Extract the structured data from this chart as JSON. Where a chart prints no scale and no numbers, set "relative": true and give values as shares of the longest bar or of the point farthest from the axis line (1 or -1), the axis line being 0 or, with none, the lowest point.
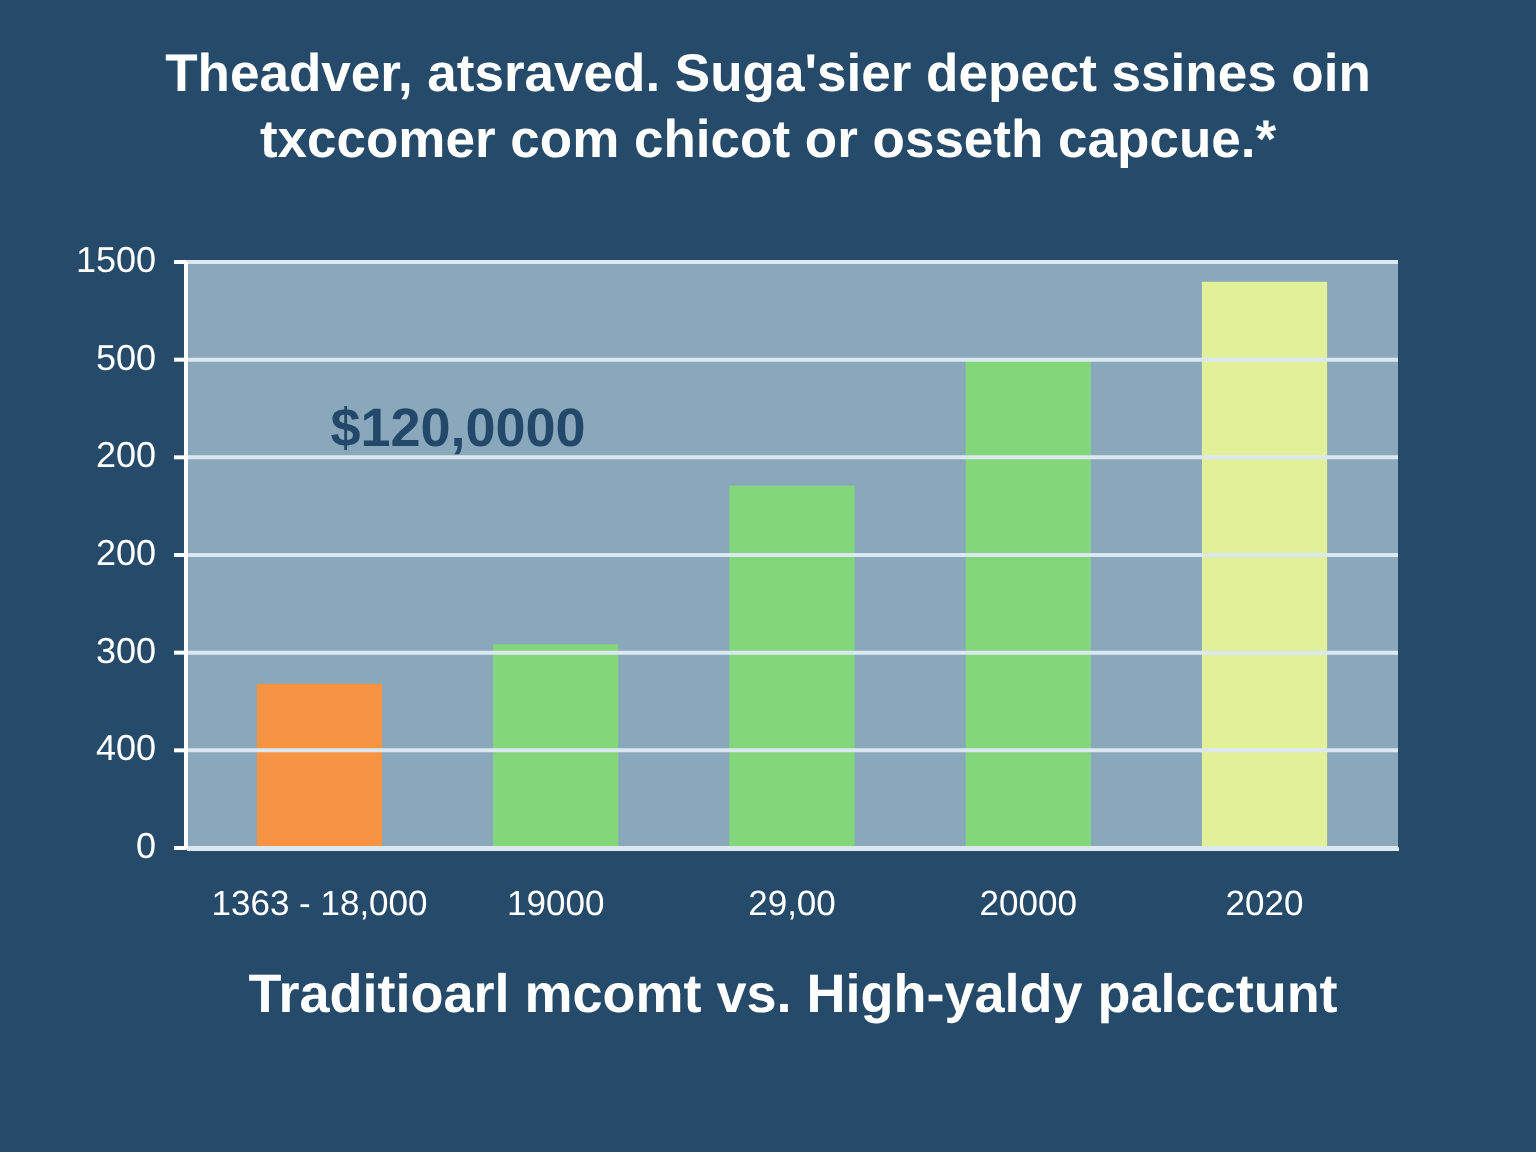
{
  "chart_data": {
    "type": "bar",
    "title": "Theadver, atsraved. Suga'sier depect ssines oin\ntxccomer com chicot or osseth capcue.*",
    "xlabel": "Traditioarl mcomt vs. High-yaldy palcctunt",
    "categories": [
      "1363 - 18,000",
      "19000",
      "29,00",
      "20000",
      "2020"
    ],
    "values": [
      0.29,
      0.36,
      0.64,
      0.86,
      1
    ],
    "relative": true,
    "colors": [
      "#f79443",
      "#84d67a",
      "#84d67a",
      "#84d67a",
      "#e2f09a"
    ],
    "grid": "y",
    "annotations": [
      "$120,0000",
      "1500",
      "500",
      "200",
      "200",
      "300",
      "400",
      "0"
    ]
  }
}
